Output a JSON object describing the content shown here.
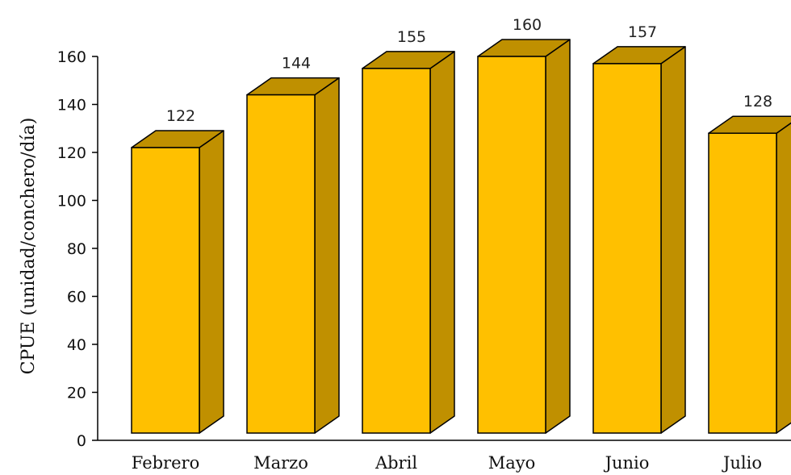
{
  "chart_data": {
    "type": "bar",
    "style": "3d",
    "title": "",
    "xlabel": "",
    "ylabel": "CPUE (unidad/conchero/día)",
    "categories": [
      "Febrero",
      "Marzo",
      "Abril",
      "Mayo",
      "Junio",
      "Julio"
    ],
    "values": [
      122,
      144,
      155,
      160,
      157,
      128
    ],
    "data_labels": [
      "122",
      "144",
      "155",
      "160",
      "157",
      "128"
    ],
    "ylim": [
      0,
      160
    ],
    "yticks": [
      0,
      20,
      40,
      60,
      80,
      100,
      120,
      140,
      160
    ],
    "ytick_labels": [
      "0",
      "20",
      "40",
      "60",
      "80",
      "100",
      "120",
      "140",
      "160"
    ],
    "grid": false,
    "legend": "none",
    "colors": {
      "front": "#FFC000",
      "top": "#BF9000",
      "side": "#C09000",
      "outline": "#000000"
    }
  }
}
